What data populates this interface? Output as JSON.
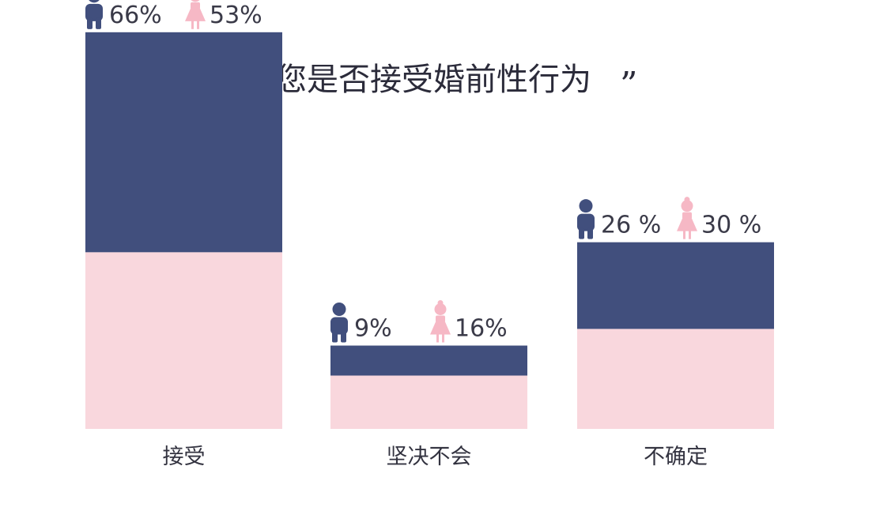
{
  "colors": {
    "male": "#414f7d",
    "female": "#f9d7dd",
    "female_icon": "#f6b8c5",
    "text": "#333340",
    "background": "#ffffff"
  },
  "chart_data": {
    "type": "bar",
    "title": "您是否接受婚前性行为",
    "title_open_quote": "“",
    "title_close_quote": "”",
    "categories": [
      "接受",
      "坚决不会",
      "不确定"
    ],
    "series": [
      {
        "icon": "male-person-icon",
        "values": [
          66,
          9,
          26
        ],
        "labels": [
          "66%",
          "9%",
          "26 %"
        ]
      },
      {
        "icon": "female-person-icon",
        "values": [
          53,
          16,
          30
        ],
        "labels": [
          "53%",
          "16%",
          "30 %"
        ]
      }
    ],
    "unit": "%",
    "grid": false,
    "legend": "none"
  }
}
